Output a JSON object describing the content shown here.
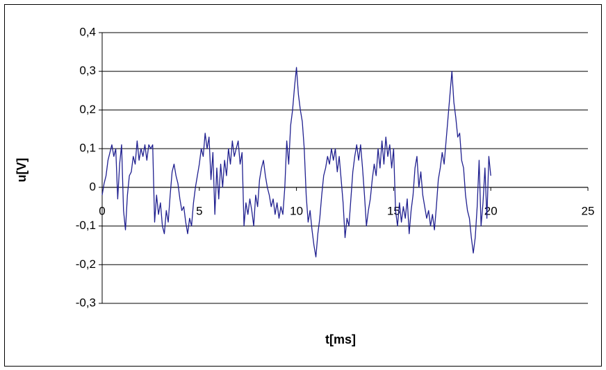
{
  "chart_data": {
    "type": "line",
    "color": "#1f1f8f",
    "xlabel": "t[ms]",
    "ylabel": "u[V]",
    "xlim": [
      0,
      25
    ],
    "xticks": [
      0,
      5,
      10,
      15,
      20,
      25
    ],
    "ylim": [
      -0.3,
      0.4
    ],
    "yticks": [
      {
        "value": -0.3,
        "label": "-0,3"
      },
      {
        "value": -0.2,
        "label": "-0,2"
      },
      {
        "value": -0.1,
        "label": "-0,1"
      },
      0,
      {
        "value": 0.1,
        "label": "0,1"
      },
      {
        "value": 0.2,
        "label": "0,2"
      },
      {
        "value": 0.3,
        "label": "0,3"
      },
      {
        "value": 0.4,
        "label": "0,4"
      }
    ],
    "grid": true,
    "x": [
      0,
      0.1,
      0.2,
      0.3,
      0.4,
      0.5,
      0.6,
      0.7,
      0.8,
      0.9,
      1,
      1.1,
      1.2,
      1.3,
      1.4,
      1.5,
      1.6,
      1.7,
      1.8,
      1.9,
      2,
      2.1,
      2.2,
      2.3,
      2.4,
      2.5,
      2.6,
      2.7,
      2.8,
      2.9,
      3,
      3.1,
      3.2,
      3.3,
      3.4,
      3.5,
      3.6,
      3.7,
      3.8,
      3.9,
      4,
      4.1,
      4.2,
      4.3,
      4.4,
      4.5,
      4.6,
      4.7,
      4.8,
      4.9,
      5,
      5.1,
      5.2,
      5.3,
      5.4,
      5.5,
      5.6,
      5.7,
      5.8,
      5.9,
      6,
      6.1,
      6.2,
      6.3,
      6.4,
      6.5,
      6.6,
      6.7,
      6.8,
      6.9,
      7,
      7.1,
      7.2,
      7.3,
      7.4,
      7.5,
      7.6,
      7.7,
      7.8,
      7.9,
      8,
      8.1,
      8.2,
      8.3,
      8.4,
      8.5,
      8.6,
      8.7,
      8.8,
      8.9,
      9,
      9.1,
      9.2,
      9.3,
      9.4,
      9.5,
      9.6,
      9.7,
      9.8,
      9.9,
      10,
      10.1,
      10.2,
      10.3,
      10.4,
      10.5,
      10.6,
      10.7,
      10.8,
      10.9,
      11,
      11.1,
      11.2,
      11.3,
      11.4,
      11.5,
      11.6,
      11.7,
      11.8,
      11.9,
      12,
      12.1,
      12.2,
      12.3,
      12.4,
      12.5,
      12.6,
      12.7,
      12.8,
      12.9,
      13,
      13.1,
      13.2,
      13.3,
      13.4,
      13.5,
      13.6,
      13.7,
      13.8,
      13.9,
      14,
      14.1,
      14.2,
      14.3,
      14.4,
      14.5,
      14.6,
      14.7,
      14.8,
      14.9,
      15,
      15.1,
      15.2,
      15.3,
      15.4,
      15.5,
      15.6,
      15.7,
      15.8,
      15.9,
      16,
      16.1,
      16.2,
      16.3,
      16.4,
      16.5,
      16.6,
      16.7,
      16.8,
      16.9,
      17,
      17.1,
      17.2,
      17.3,
      17.4,
      17.5,
      17.6,
      17.7,
      17.8,
      17.9,
      18,
      18.1,
      18.2,
      18.3,
      18.4,
      18.5,
      18.6,
      18.7,
      18.8,
      18.9,
      19,
      19.1,
      19.2,
      19.3,
      19.4,
      19.5,
      19.6,
      19.7,
      19.8,
      19.9,
      20
    ],
    "values": [
      -0.02,
      0.01,
      0.03,
      0.07,
      0.09,
      0.11,
      0.08,
      0.1,
      -0.03,
      0.06,
      0.11,
      -0.06,
      -0.11,
      -0.02,
      0.03,
      0.04,
      0.08,
      0.06,
      0.12,
      0.07,
      0.1,
      0.08,
      0.11,
      0.07,
      0.11,
      0.1,
      0.11,
      -0.09,
      -0.02,
      -0.07,
      -0.04,
      -0.1,
      -0.12,
      -0.06,
      -0.09,
      -0.02,
      0.04,
      0.06,
      0.03,
      0.01,
      -0.03,
      -0.06,
      -0.05,
      -0.09,
      -0.12,
      -0.08,
      -0.1,
      -0.04,
      0,
      0.03,
      0.06,
      0.1,
      0.08,
      0.14,
      0.1,
      0.13,
      0.02,
      0.09,
      -0.07,
      0.05,
      -0.03,
      0.06,
      0,
      0.07,
      0.03,
      0.1,
      0.06,
      0.12,
      0.08,
      0.1,
      0.12,
      0.06,
      0.09,
      -0.1,
      -0.04,
      -0.07,
      -0.03,
      -0.06,
      -0.1,
      -0.02,
      -0.05,
      0.02,
      0.05,
      0.07,
      0.03,
      0,
      -0.02,
      -0.05,
      -0.03,
      -0.07,
      -0.04,
      -0.08,
      -0.05,
      -0.07,
      0,
      0.12,
      0.06,
      0.16,
      0.2,
      0.26,
      0.31,
      0.24,
      0.2,
      0.17,
      0.1,
      -0.02,
      -0.09,
      -0.06,
      -0.11,
      -0.15,
      -0.18,
      -0.12,
      -0.08,
      -0.02,
      0.03,
      0.05,
      0.08,
      0.06,
      0.1,
      0.07,
      0.1,
      0.04,
      0.08,
      0.02,
      -0.04,
      -0.13,
      -0.08,
      -0.1,
      -0.03,
      0.04,
      0.08,
      0.11,
      0.07,
      0.11,
      0.05,
      -0.02,
      -0.1,
      -0.06,
      -0.03,
      0.02,
      0.06,
      0.03,
      0.1,
      0.05,
      0.12,
      0.06,
      0.13,
      0.08,
      0.11,
      0.05,
      0.1,
      -0.06,
      -0.1,
      -0.04,
      -0.09,
      -0.05,
      -0.08,
      -0.03,
      -0.12,
      -0.06,
      -0.02,
      0.05,
      0.08,
      0,
      0.04,
      -0.02,
      -0.05,
      -0.08,
      -0.06,
      -0.1,
      -0.07,
      -0.11,
      -0.05,
      0.02,
      0.05,
      0.09,
      0.06,
      0.12,
      0.18,
      0.24,
      0.3,
      0.22,
      0.18,
      0.13,
      0.14,
      0.07,
      0.05,
      -0.02,
      -0.06,
      -0.08,
      -0.13,
      -0.17,
      -0.13,
      -0.05,
      0.07,
      -0.1,
      -0.04,
      0.05,
      -0.08,
      0.08,
      0.03
    ]
  }
}
